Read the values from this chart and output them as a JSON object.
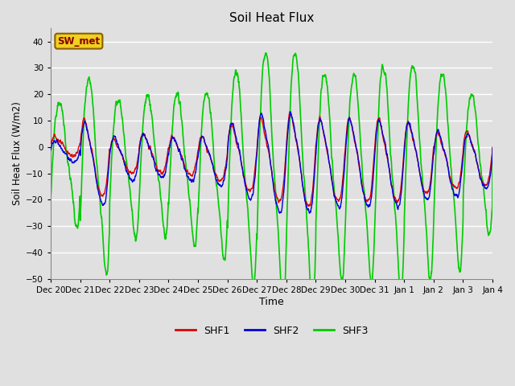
{
  "title": "Soil Heat Flux",
  "xlabel": "Time",
  "ylabel": "Soil Heat Flux (W/m2)",
  "ylim": [
    -50,
    45
  ],
  "yticks": [
    -50,
    -40,
    -30,
    -20,
    -10,
    0,
    10,
    20,
    30,
    40
  ],
  "background_color": "#e0e0e0",
  "plot_bg_color": "#e0e0e0",
  "grid_color": "#ffffff",
  "colors": {
    "SHF1": "#dd0000",
    "SHF2": "#0000dd",
    "SHF3": "#00cc00"
  },
  "annotation_box": "SW_met",
  "legend_entries": [
    "SHF1",
    "SHF2",
    "SHF3"
  ],
  "x_tick_labels": [
    "Dec 20",
    "Dec 21",
    "Dec 22",
    "Dec 23",
    "Dec 24",
    "Dec 25",
    "Dec 26",
    "Dec 27",
    "Dec 28",
    "Dec 29",
    "Dec 30",
    "Dec 31",
    "Jan 1",
    "Jan 2",
    "Jan 3",
    "Jan 4"
  ],
  "n_days": 15,
  "points_per_day": 144,
  "shf1_amplitudes": [
    3.5,
    14,
    6,
    7,
    7,
    8,
    12,
    15,
    17,
    15,
    15,
    15,
    13,
    10,
    10
  ],
  "shf1_offsets": [
    0,
    -5,
    -4,
    -3,
    -4,
    -5,
    -5,
    -6,
    -6,
    -6,
    -6,
    -6,
    -5,
    -6,
    -5
  ],
  "shf2_amplitudes": [
    4,
    15,
    8,
    8,
    8,
    9,
    14,
    18,
    18,
    16,
    16,
    16,
    14,
    12,
    10
  ],
  "shf2_offsets": [
    -2,
    -7,
    -5,
    -4,
    -5,
    -6,
    -6,
    -7,
    -7,
    -7,
    -7,
    -7,
    -6,
    -7,
    -6
  ],
  "shf3_amplitudes": [
    22,
    35,
    25,
    25,
    27,
    30,
    38,
    45,
    45,
    37,
    37,
    40,
    38,
    35,
    25
  ],
  "shf3_offsets": [
    -5,
    -8,
    -6,
    -5,
    -6,
    -8,
    -8,
    -8,
    -8,
    -8,
    -8,
    -8,
    -6,
    -6,
    -5
  ],
  "shf1_phase": 0.3,
  "shf2_phase": 0.2,
  "shf3_phase": -0.5,
  "noise_seed": 123
}
